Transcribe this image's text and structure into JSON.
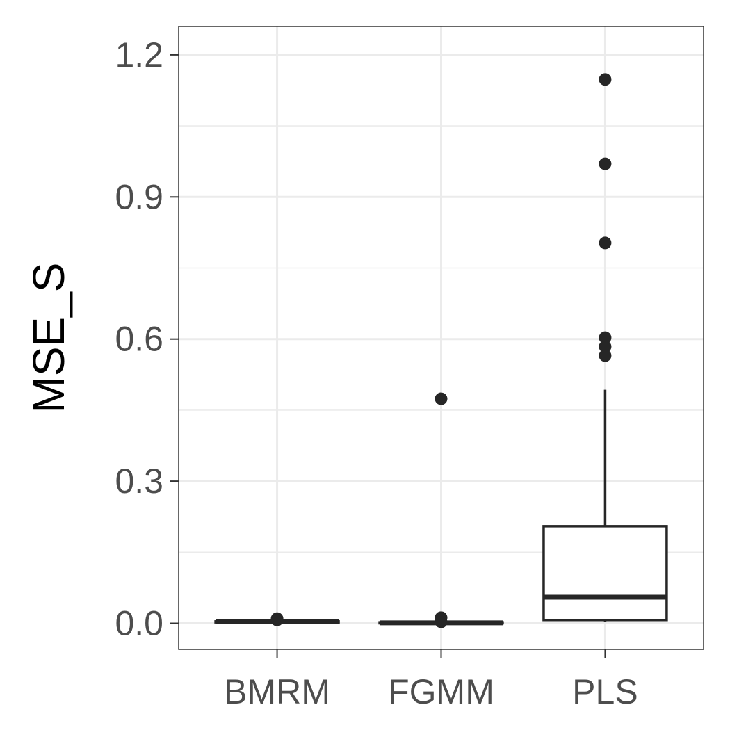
{
  "chart_data": {
    "type": "boxplot",
    "title": "",
    "xlabel": "",
    "ylabel": "MSE_S",
    "ylim": [
      -0.055,
      1.26
    ],
    "y_ticks": [
      0.0,
      0.3,
      0.6,
      0.9,
      1.2
    ],
    "y_tick_labels": [
      "0.0",
      "0.3",
      "0.6",
      "0.9",
      "1.2"
    ],
    "grid": true,
    "legend": "none",
    "categories": [
      "BMRM",
      "FGMM",
      "PLS"
    ],
    "boxes": [
      {
        "category": "BMRM",
        "min": 0.001,
        "q1": 0.002,
        "median": 0.003,
        "q3": 0.004,
        "max": 0.005,
        "outliers": [
          0.01,
          0.007
        ]
      },
      {
        "category": "FGMM",
        "min": 0.0,
        "q1": 0.0,
        "median": 0.001,
        "q3": 0.002,
        "max": 0.003,
        "outliers": [
          0.474,
          0.012,
          0.003
        ]
      },
      {
        "category": "PLS",
        "min": 0.003,
        "q1": 0.007,
        "median": 0.055,
        "q3": 0.205,
        "max": 0.493,
        "outliers": [
          1.148,
          0.97,
          0.803,
          0.603,
          0.584,
          0.565
        ]
      }
    ]
  },
  "colors": {
    "panel_background": "#ffffff",
    "grid": "#ebebeb",
    "box_line": "#262626",
    "tick_text": "#4d4d4d",
    "axis_title": "#000000"
  }
}
